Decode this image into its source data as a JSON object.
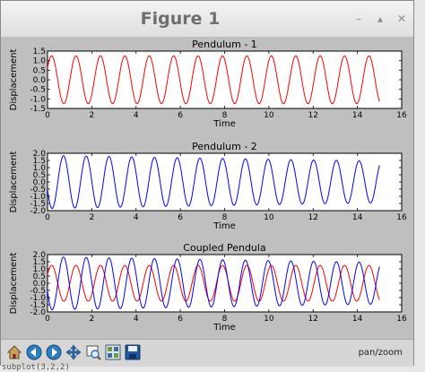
{
  "window": {
    "title": "Figure 1",
    "min_icon": "minimize-icon",
    "max_icon": "maximize-icon",
    "close_icon": "close-icon"
  },
  "toolbar": {
    "buttons": [
      "home-icon",
      "back-icon",
      "forward-icon",
      "pan-icon",
      "zoom-icon",
      "subplots-icon",
      "save-icon"
    ],
    "status": "pan/zoom"
  },
  "terminal_fragment": "subplot(3,2,2)",
  "colors": {
    "red": "#ff0000",
    "blue": "#0000ff"
  },
  "chart_data": [
    {
      "type": "line",
      "title": "Pendulum - 1",
      "xlabel": "Time",
      "ylabel": "Displacement",
      "xlim": [
        0,
        16
      ],
      "ylim": [
        -1.5,
        1.5
      ],
      "xticks": [
        0,
        2,
        4,
        6,
        8,
        10,
        12,
        14,
        16
      ],
      "yticks": [
        -1.5,
        -1.0,
        -0.5,
        0.0,
        0.5,
        1.0,
        1.5
      ],
      "series": [
        {
          "color": "#ff0000",
          "x_range": [
            0,
            15
          ],
          "amplitude": 1.25,
          "phase_at_zero": 0.62,
          "cycles_in_range": 13.6
        }
      ]
    },
    {
      "type": "line",
      "title": "Pendulum - 2",
      "xlabel": "Time",
      "ylabel": "Displacement",
      "xlim": [
        0,
        16
      ],
      "ylim": [
        -2.0,
        2.0
      ],
      "xticks": [
        0,
        2,
        4,
        6,
        8,
        10,
        12,
        14,
        16
      ],
      "yticks": [
        -2.0,
        -1.5,
        -1.0,
        -0.5,
        0.0,
        0.5,
        1.0,
        1.5,
        2.0
      ],
      "series": [
        {
          "color": "#0000ff",
          "x_range": [
            0,
            15
          ],
          "amplitude": 1.85,
          "amplitude_end": 1.45,
          "phase_at_zero": -0.55,
          "cycles_in_range": 14.6
        }
      ]
    },
    {
      "type": "line",
      "title": "Coupled Pendula",
      "xlabel": "Time",
      "ylabel": "Displacement",
      "xlim": [
        0,
        16
      ],
      "ylim": [
        -2.0,
        2.0
      ],
      "xticks": [
        0,
        2,
        4,
        6,
        8,
        10,
        12,
        14,
        16
      ],
      "yticks": [
        -2.0,
        -1.5,
        -1.0,
        -0.5,
        0.0,
        0.5,
        1.0,
        1.5,
        2.0
      ],
      "series": [
        {
          "color": "#ff0000",
          "x_range": [
            0,
            15
          ],
          "amplitude": 1.25,
          "phase_at_zero": 0.62,
          "cycles_in_range": 13.6
        },
        {
          "color": "#0000ff",
          "x_range": [
            0,
            15
          ],
          "amplitude": 1.85,
          "amplitude_end": 1.45,
          "phase_at_zero": -0.55,
          "cycles_in_range": 14.6
        }
      ]
    }
  ]
}
